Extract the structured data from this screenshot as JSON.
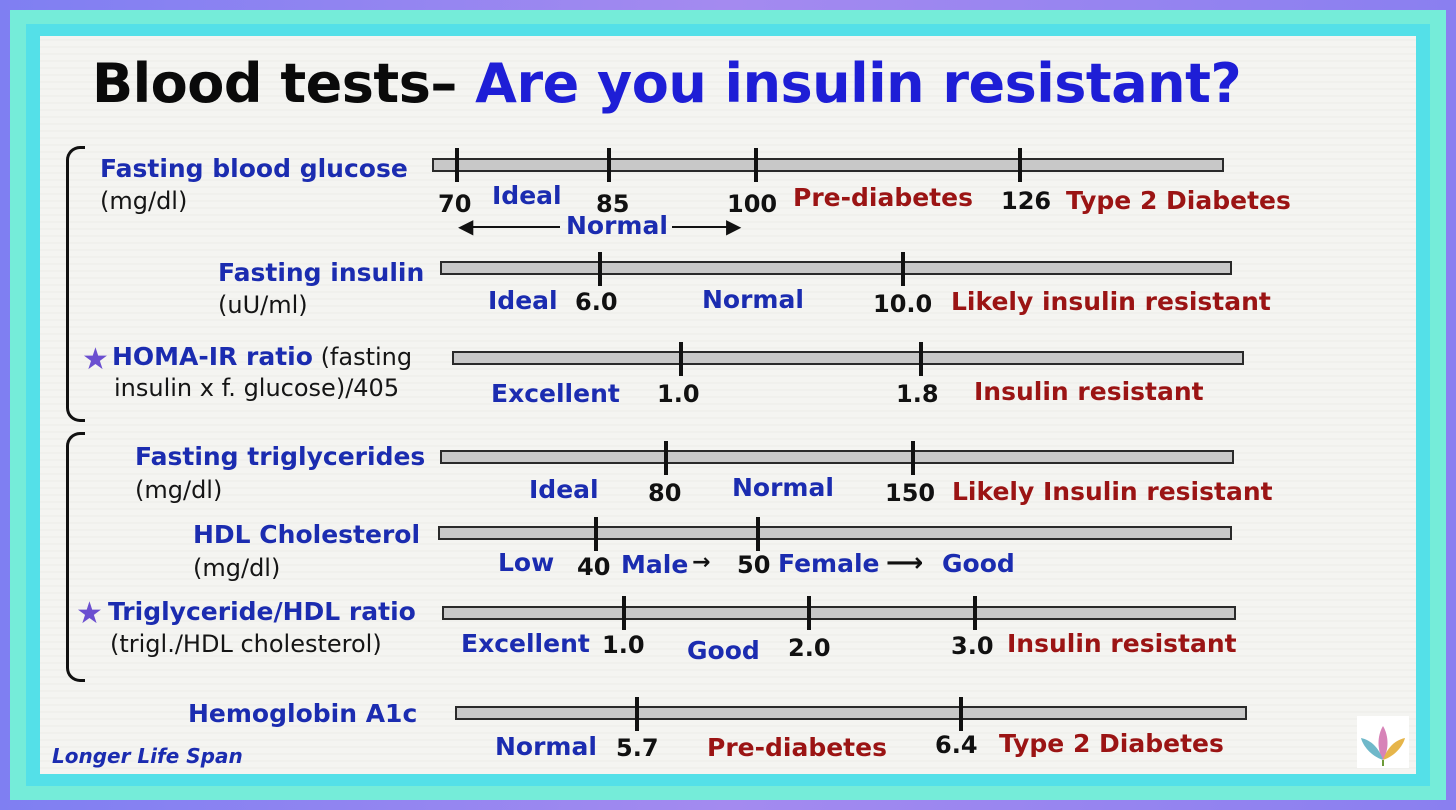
{
  "title": {
    "main": "Blood tests–",
    "question": "Are you insulin resistant?"
  },
  "rows": {
    "glucose": {
      "label": "Fasting blood glucose",
      "unit": "(mg/dl)",
      "t70": "70",
      "ideal": "Ideal",
      "t85": "85",
      "t100": "100",
      "prediabetes": "Pre-diabetes",
      "t126": "126",
      "diabetes": "Type 2 Diabetes",
      "normal": "Normal"
    },
    "insulin": {
      "label": "Fasting insulin",
      "unit": "(uU/ml)",
      "ideal": "Ideal",
      "t6": "6.0",
      "normal": "Normal",
      "t10": "10.0",
      "resistant": "Likely insulin resistant"
    },
    "homa": {
      "label": "HOMA-IR ratio",
      "label_rest": " (fasting",
      "formula": "insulin x f. glucose)/405",
      "excellent": "Excellent",
      "t1": "1.0",
      "t18": "1.8",
      "resistant": "Insulin resistant"
    },
    "trig": {
      "label": "Fasting triglycerides",
      "unit": "(mg/dl)",
      "ideal": "Ideal",
      "t80": "80",
      "normal": "Normal",
      "t150": "150",
      "resistant": "Likely Insulin resistant"
    },
    "hdl": {
      "label": "HDL Cholesterol",
      "unit": "(mg/dl)",
      "low": "Low",
      "t40": "40",
      "male": "Male",
      "t50": "50",
      "female": "Female",
      "good": "Good"
    },
    "ratio": {
      "label": "Triglyceride/HDL ratio",
      "formula": "(trigl./HDL cholesterol)",
      "excellent": "Excellent",
      "t1": "1.0",
      "good": "Good",
      "t2": "2.0",
      "t3": "3.0",
      "resistant": "Insulin resistant"
    },
    "a1c": {
      "label": "Hemoglobin A1c",
      "normal": "Normal",
      "t57": "5.7",
      "prediabetes": "Pre-diabetes",
      "t64": "6.4",
      "diabetes": "Type 2 Diabetes"
    }
  },
  "brand": "Longer Life Span",
  "colors": {
    "heading_blue": "#1e1ed6",
    "label_blue": "#1b2cb0",
    "warning_red": "#9b1414",
    "bar_gray": "#c8c8c8",
    "outer_purple": "#8a7ff0",
    "inner_teal": "#54e0e8"
  },
  "icons": {
    "star": "star-icon",
    "logo": "leaf-logo-icon"
  }
}
